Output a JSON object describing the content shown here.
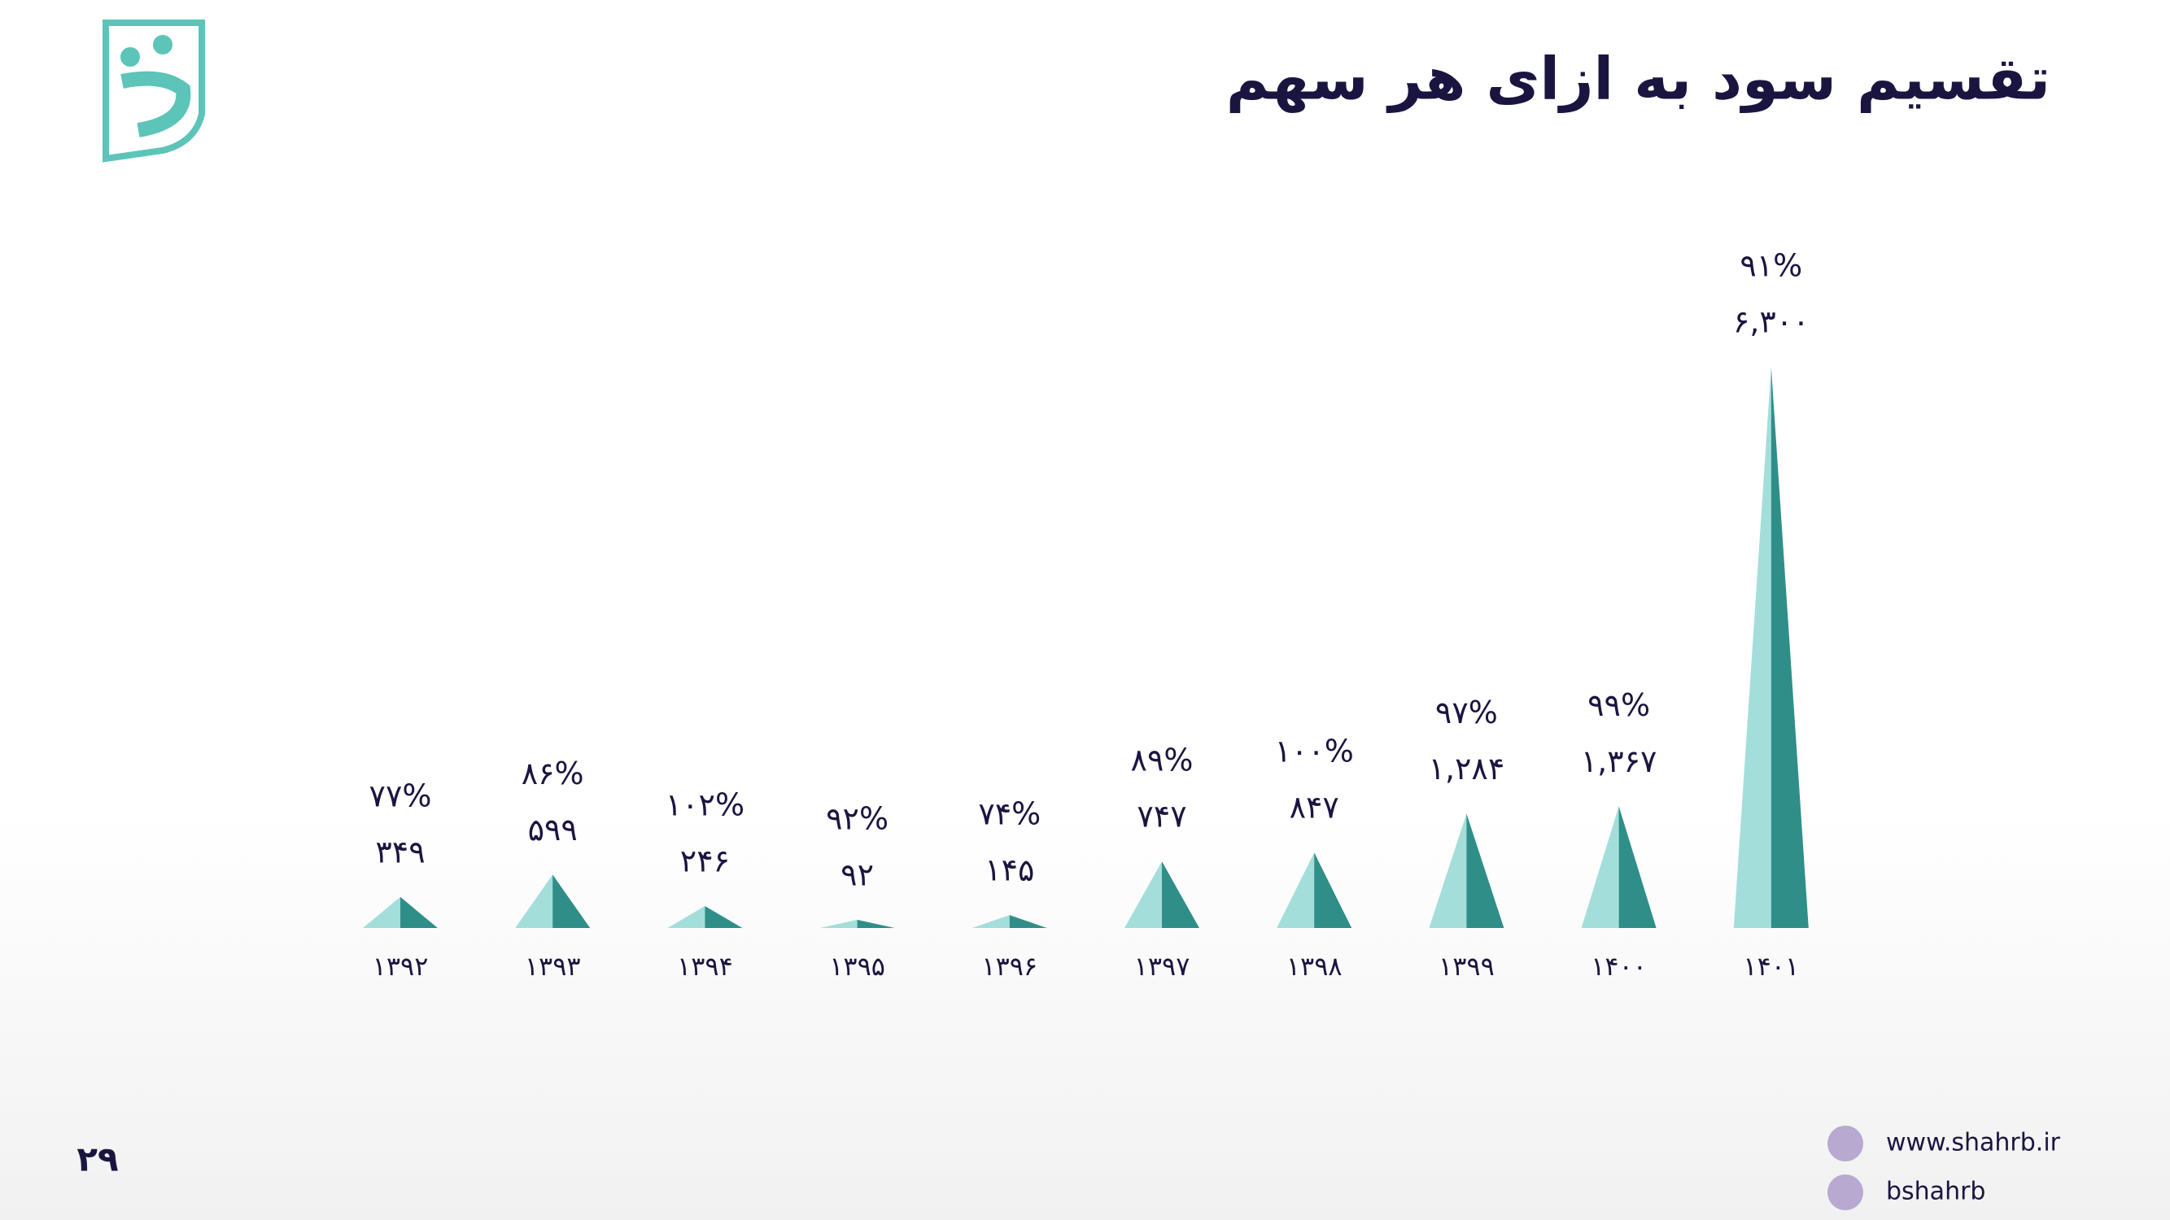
{
  "header": {
    "title": "تقسیم سود به ازای هر سهم"
  },
  "chart_data": {
    "type": "bar",
    "categories": [
      "۱۳۹۲",
      "۱۳۹۳",
      "۱۳۹۴",
      "۱۳۹۵",
      "۱۳۹۶",
      "۱۳۹۷",
      "۱۳۹۸",
      "۱۳۹۹",
      "۱۴۰۰",
      "۱۴۰۱"
    ],
    "values": [
      349,
      599,
      246,
      92,
      145,
      747,
      847,
      1284,
      1367,
      6300
    ],
    "value_labels": [
      "۳۴۹",
      "۵۹۹",
      "۲۴۶",
      "۹۲",
      "۱۴۵",
      "۷۴۷",
      "۸۴۷",
      "۱,۲۸۴",
      "۱,۳۶۷",
      "۶,۳۰۰"
    ],
    "ratio_values": [
      77,
      86,
      102,
      92,
      74,
      89,
      100,
      97,
      99,
      91
    ],
    "ratio_labels": [
      "۷۷%",
      "۸۶%",
      "۱۰۲%",
      "۹۲%",
      "۷۴%",
      "۸۹%",
      "۱۰۰%",
      "۹۷%",
      "۹۹%",
      "۹۱%"
    ],
    "colors": [
      "#a3dedb",
      "#2f8f88"
    ]
  },
  "footer": {
    "page": "۲۹",
    "website": "www.shahrb.ir",
    "telegram": "bshahrb"
  }
}
